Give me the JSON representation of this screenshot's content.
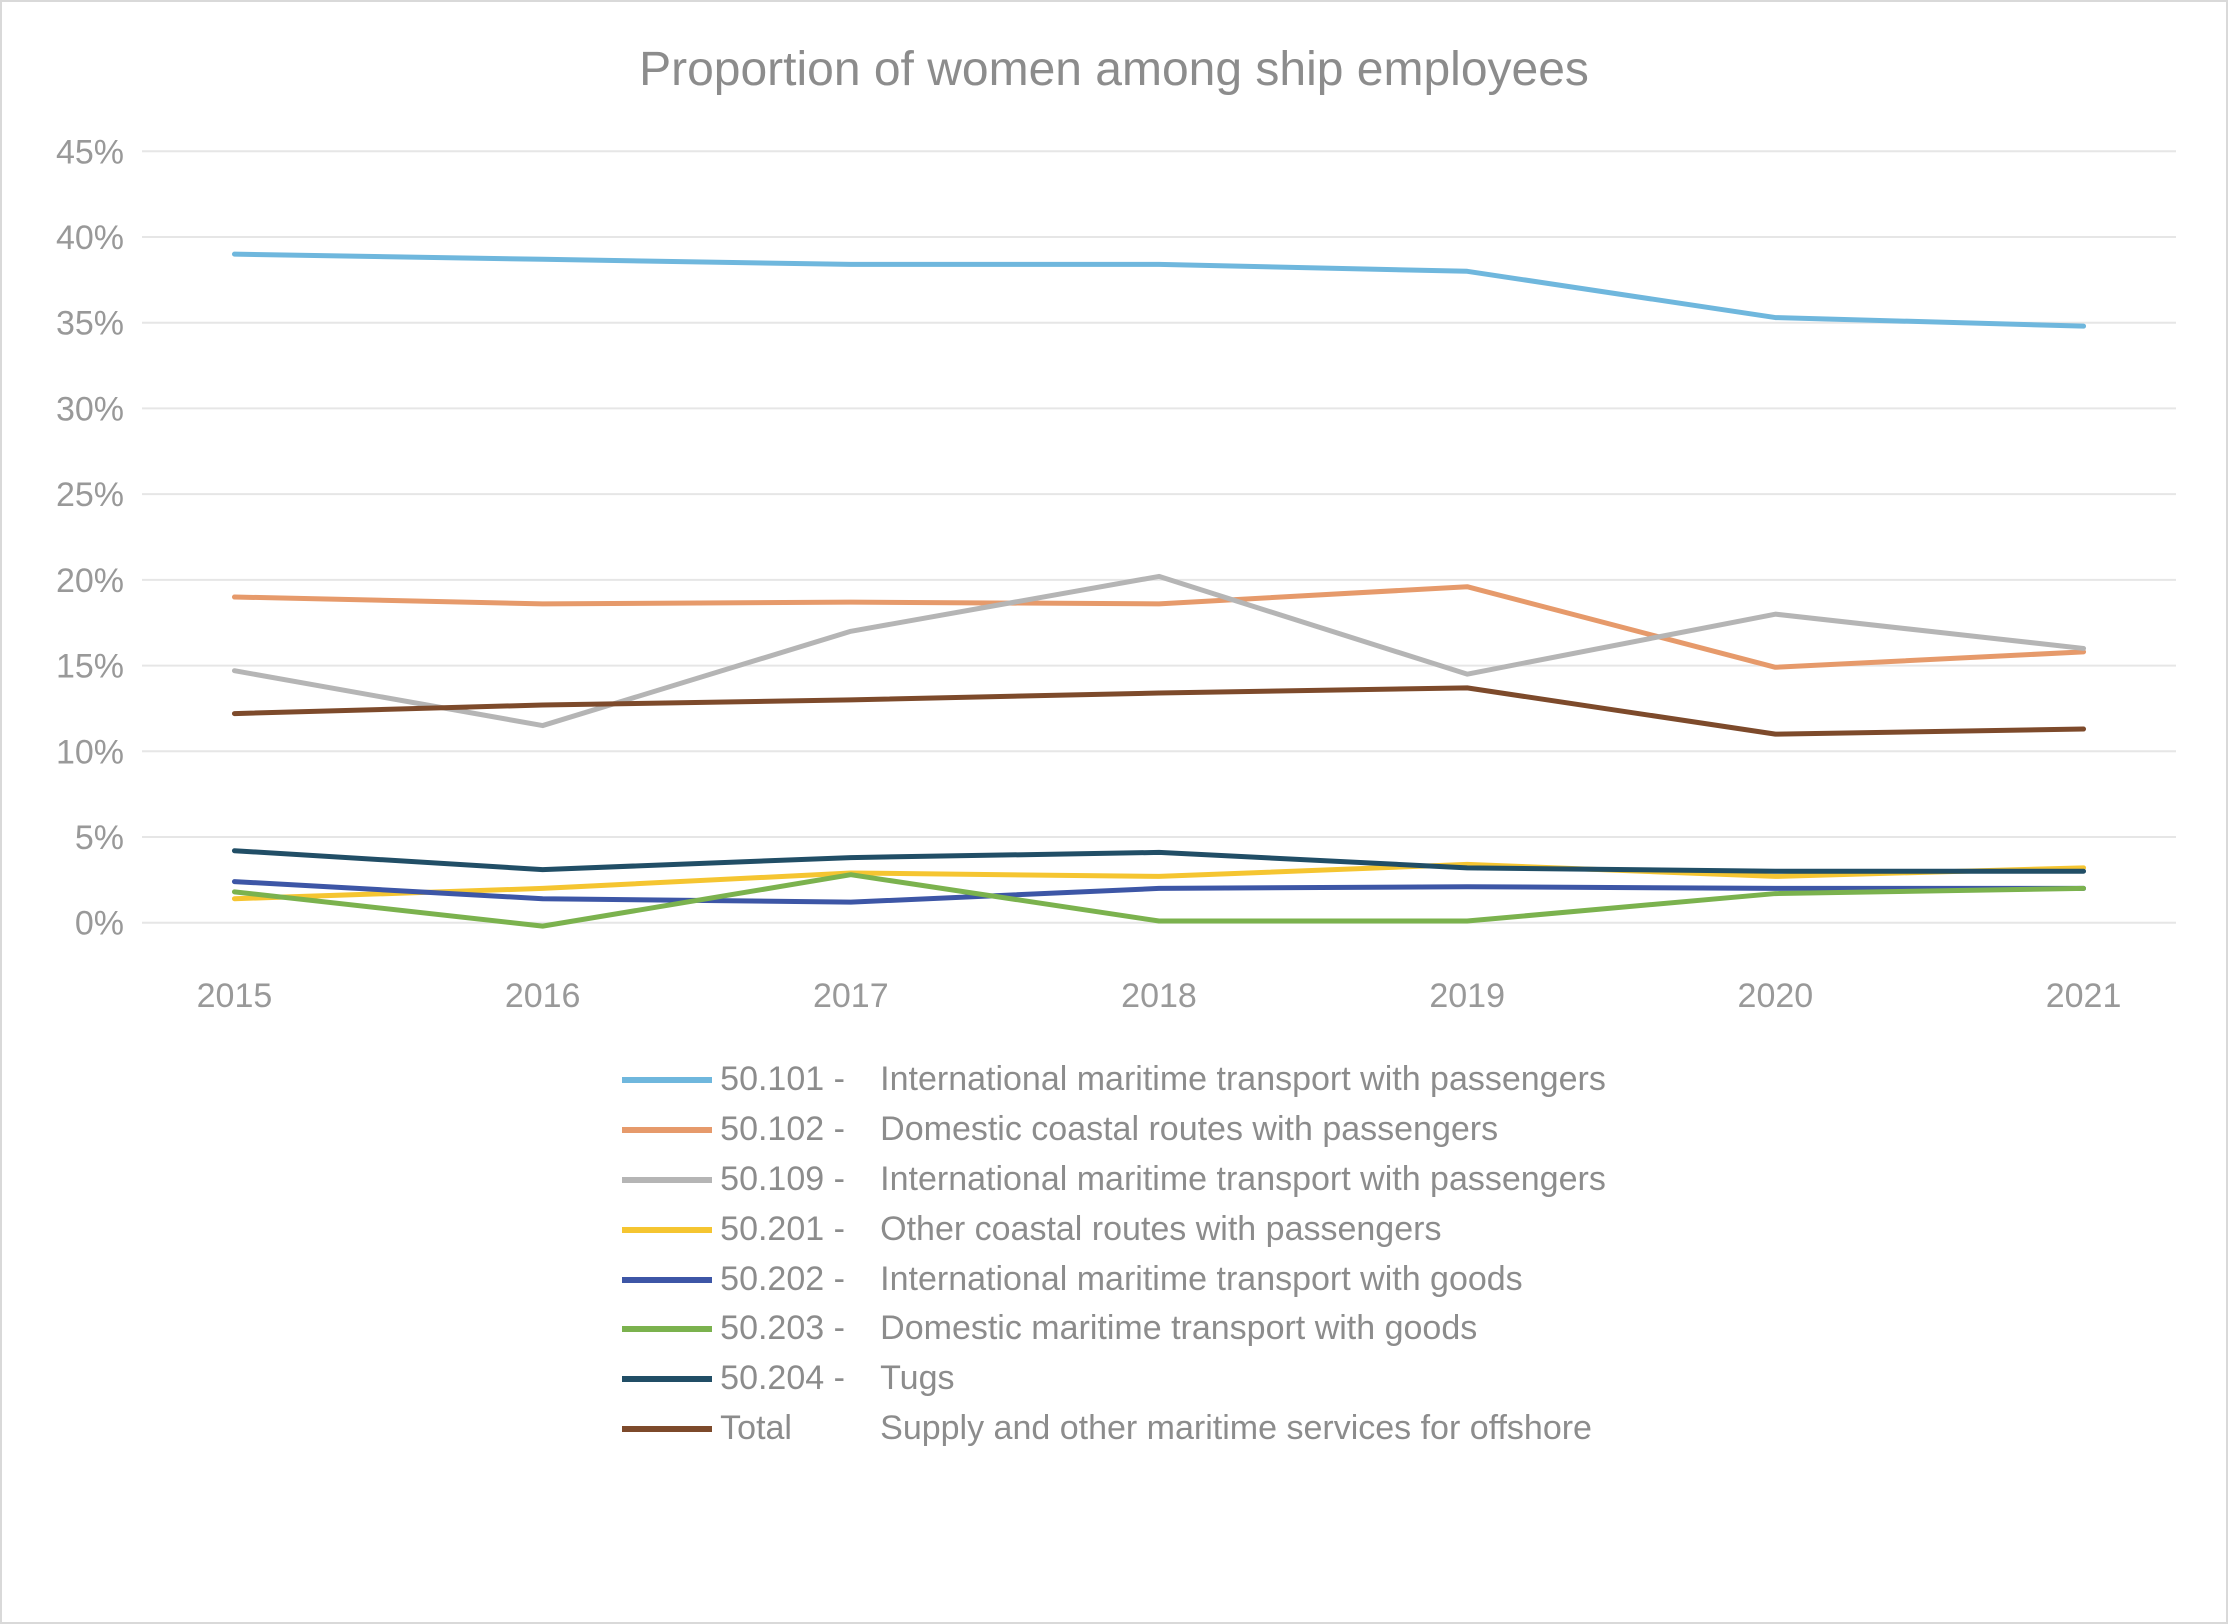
{
  "chart": {
    "type": "line",
    "title": "Proportion of women among ship employees",
    "title_fontsize": 48,
    "title_color": "#8c8c8c",
    "background_color": "#ffffff",
    "border_color": "#d9d9d9",
    "grid_color": "#e6e6e6",
    "axis_label_color": "#999999",
    "axis_fontsize": 34,
    "line_width": 5,
    "x_categories": [
      "2015",
      "2016",
      "2017",
      "2018",
      "2019",
      "2020",
      "2021"
    ],
    "y_axis": {
      "min": -2,
      "max": 47,
      "ticks": [
        0,
        5,
        10,
        15,
        20,
        25,
        30,
        35,
        40,
        45
      ],
      "tick_format_suffix": "%"
    },
    "series": [
      {
        "id": "s50101",
        "code": "50.101 -",
        "label": "International maritime transport with passengers",
        "color": "#6fb7dd",
        "values": [
          39.0,
          38.7,
          38.4,
          38.4,
          38.0,
          35.3,
          34.8
        ]
      },
      {
        "id": "s50102",
        "code": "50.102 -",
        "label": "Domestic coastal routes with passengers",
        "color": "#e69a6b",
        "values": [
          19.0,
          18.6,
          18.7,
          18.6,
          19.6,
          14.9,
          15.8
        ]
      },
      {
        "id": "s50109",
        "code": "50.109 -",
        "label": "International maritime transport with passengers",
        "color": "#b5b5b5",
        "values": [
          14.7,
          11.5,
          17.0,
          20.2,
          14.5,
          18.0,
          16.0
        ]
      },
      {
        "id": "s50201",
        "code": "50.201 -",
        "label": "Other coastal routes with passengers",
        "color": "#f5c531",
        "values": [
          1.4,
          2.0,
          2.9,
          2.7,
          3.4,
          2.7,
          3.2
        ]
      },
      {
        "id": "s50202",
        "code": "50.202 -",
        "label": "International maritime transport with goods",
        "color": "#3d56a6",
        "values": [
          2.4,
          1.4,
          1.2,
          2.0,
          2.1,
          2.0,
          2.0
        ]
      },
      {
        "id": "s50203",
        "code": "50.203 -",
        "label": "Domestic maritime transport with goods",
        "color": "#7bb24e",
        "values": [
          1.8,
          -0.2,
          2.8,
          0.1,
          0.1,
          1.7,
          2.0
        ]
      },
      {
        "id": "s50204",
        "code": "50.204 -",
        "label": "Tugs",
        "color": "#214e66",
        "values": [
          4.2,
          3.1,
          3.8,
          4.1,
          3.2,
          3.0,
          3.0
        ]
      },
      {
        "id": "sTotal",
        "code": "Total",
        "label": "Supply and other maritime services for offshore",
        "color": "#7d4a2b",
        "values": [
          12.2,
          12.7,
          13.0,
          13.4,
          13.7,
          11.0,
          11.3
        ]
      }
    ],
    "legend_trailing_label": "Supply and other maritime services for offshore",
    "legend_fontsize": 34,
    "legend_color": "#8c8c8c"
  }
}
